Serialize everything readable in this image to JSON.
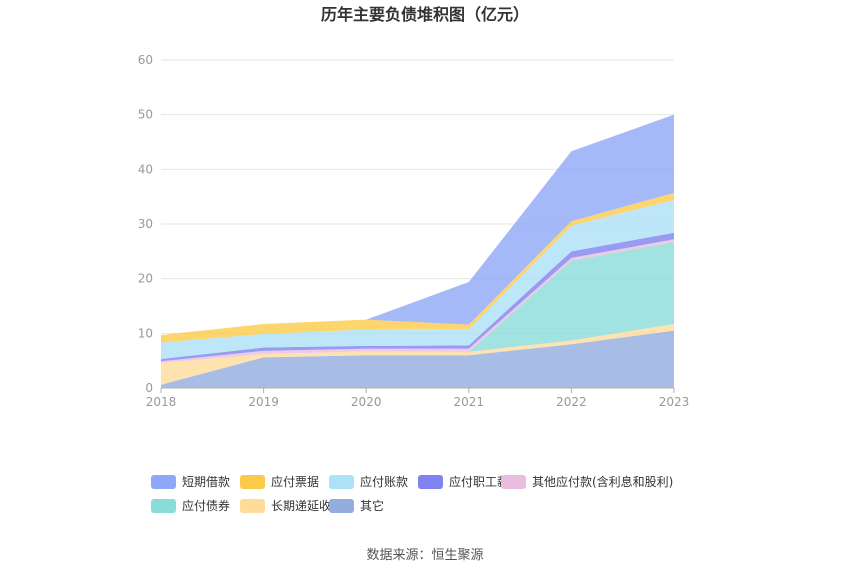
{
  "chart_data": {
    "type": "area",
    "stacked": true,
    "title": "历年主要负债堆积图（亿元）",
    "x": [
      "2018",
      "2019",
      "2020",
      "2021",
      "2022",
      "2023"
    ],
    "ylim": [
      0,
      60
    ],
    "yticks": [
      0,
      10,
      20,
      30,
      40,
      50,
      60
    ],
    "grid": true,
    "legend_position": "bottom",
    "series": [
      {
        "name": "其它",
        "color": "#92ADDE",
        "values": [
          0.6,
          5.6,
          6.0,
          6.0,
          8.0,
          10.5
        ]
      },
      {
        "name": "长期递延收益",
        "color": "#FFDC9A",
        "values": [
          4.0,
          0.6,
          0.7,
          0.6,
          0.7,
          1.2
        ]
      },
      {
        "name": "应付债券",
        "color": "#8ADCD9",
        "values": [
          0,
          0,
          0,
          0,
          14.6,
          15.0
        ]
      },
      {
        "name": "其他应付款(含利息和股利)",
        "color": "#E8BDDF",
        "values": [
          0.3,
          0.6,
          0.5,
          0.6,
          0.5,
          0.5
        ]
      },
      {
        "name": "应付职工薪酬",
        "color": "#7F82EF",
        "values": [
          0.4,
          0.6,
          0.5,
          0.6,
          1.2,
          1.2
        ]
      },
      {
        "name": "应付账款",
        "color": "#ADE1F8",
        "values": [
          3.0,
          2.5,
          3.0,
          3.0,
          4.7,
          6.0
        ]
      },
      {
        "name": "应付票据",
        "color": "#FBCA48",
        "values": [
          1.4,
          1.8,
          1.8,
          0.8,
          0.8,
          1.3
        ]
      },
      {
        "name": "短期借款",
        "color": "#8EA8F7",
        "values": [
          0,
          0,
          0,
          7.8,
          12.8,
          14.3
        ]
      }
    ]
  },
  "source_text": "数据来源：恒生聚源"
}
